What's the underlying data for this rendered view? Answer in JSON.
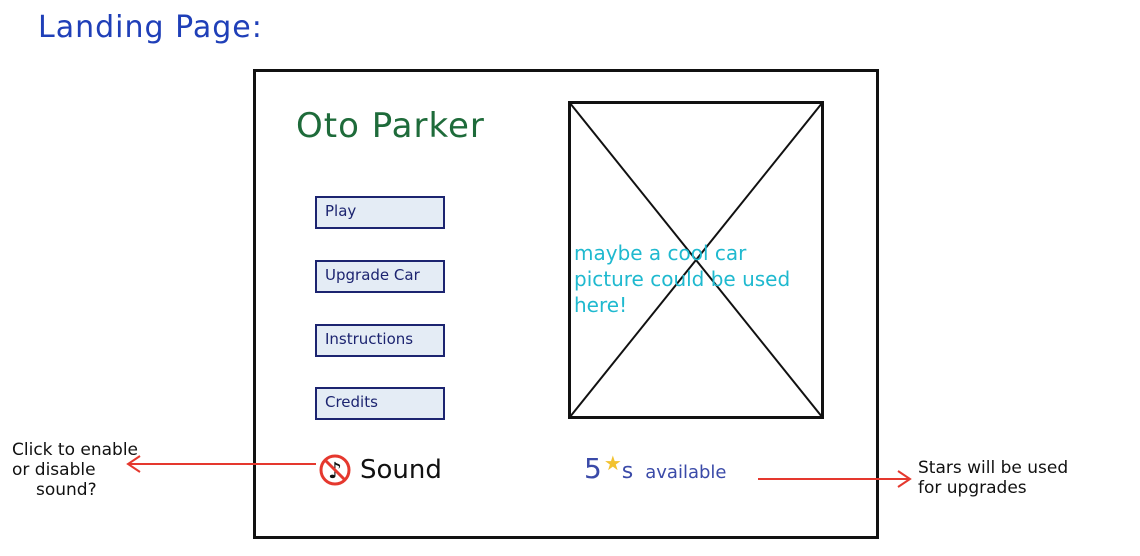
{
  "heading": "Landing Page:",
  "app": {
    "title": "Oto Parker",
    "menu": {
      "play": "Play",
      "upgrade_car": "Upgrade Car",
      "instructions": "Instructions",
      "credits": "Credits"
    },
    "sound_label": "Sound",
    "image_note": "maybe a cool car picture could be used here!",
    "stars": {
      "count": "5",
      "suffix": "s",
      "text": "available"
    }
  },
  "annotations": {
    "sound": [
      "Click to enable",
      "or disable",
      "sound?"
    ],
    "stars": [
      "Stars will be used",
      "for upgrades"
    ]
  },
  "colors": {
    "heading": "#1f3fb8",
    "title": "#1e6b3a",
    "button_fill": "#e4ecf5",
    "button_border": "#1c2470",
    "note": "#1fb9cf",
    "star": "#f2c230",
    "arrow": "#e5382e"
  },
  "icons": {
    "sound": "muted-music-note-icon",
    "star": "star-icon"
  }
}
